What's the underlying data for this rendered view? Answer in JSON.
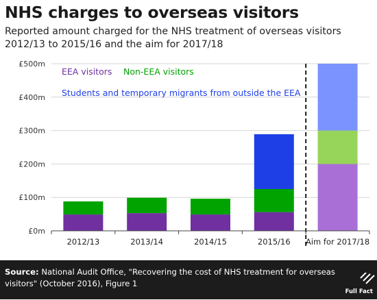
{
  "title": "NHS charges to overseas visitors",
  "subtitle": "Reported amount charged for the NHS treatment of overseas visitors 2012/13 to 2015/16 and the aim for 2017/18",
  "source": {
    "label": "Source:",
    "text": "National Audit Office, \"Recovering the cost of NHS treatment for overseas visitors\" (October 2016), Figure 1"
  },
  "logo": {
    "text": "Full Fact"
  },
  "colors": {
    "eea": "#7030a0",
    "non_eea": "#00a300",
    "students": "#1f3fe6",
    "eea_target": "#a96fd6",
    "non_eea_target": "#96d45a",
    "students_target": "#7b93ff",
    "label_eea": "#7030a0",
    "label_non_eea": "#00a300",
    "label_students": "#1f3fe6"
  },
  "chart_data": {
    "type": "bar",
    "stacked": true,
    "categories": [
      "2012/13",
      "2013/14",
      "2014/15",
      "2015/16",
      "Aim for 2017/18"
    ],
    "series": [
      {
        "name": "EEA visitors",
        "key": "eea",
        "values": [
          49,
          53,
          49,
          56,
          200
        ]
      },
      {
        "name": "Non-EEA visitors",
        "key": "non_eea",
        "values": [
          39,
          46,
          47,
          69,
          100
        ]
      },
      {
        "name": "Students and temporary migrants from outside the EEA",
        "key": "students",
        "values": [
          0,
          0,
          0,
          164,
          200
        ]
      }
    ],
    "y_ticks": [
      "£0m",
      "£100m",
      "£200m",
      "£300m",
      "£400m",
      "£500m"
    ],
    "ylim": [
      0,
      500
    ],
    "grid": true,
    "divider_before_last_category": true
  }
}
